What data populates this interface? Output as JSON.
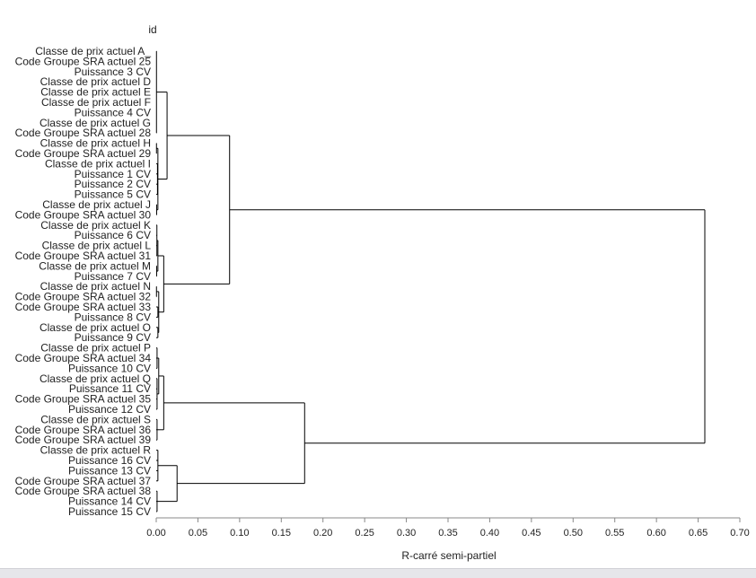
{
  "chart_data": {
    "type": "dendrogram",
    "orientation": "horizontal",
    "title": "id",
    "xlabel": "R-carré semi-partiel",
    "xlim": [
      0,
      0.7
    ],
    "xticks": [
      "0.00",
      "0.05",
      "0.10",
      "0.15",
      "0.20",
      "0.25",
      "0.30",
      "0.35",
      "0.40",
      "0.45",
      "0.50",
      "0.55",
      "0.60",
      "0.65",
      "0.70"
    ],
    "line_color": "#000000",
    "leaves": [
      "Classe de prix actuel A_",
      "Code Groupe SRA actuel 25",
      "Puissance 3 CV",
      "Classe de prix actuel D",
      "Classe de prix actuel E",
      "Classe de prix actuel F",
      "Puissance 4 CV",
      "Classe de prix actuel G",
      "Code Groupe SRA actuel 28",
      "Classe de prix actuel H",
      "Code Groupe SRA actuel 29",
      "Classe de prix actuel I",
      "Puissance 1 CV",
      "Puissance 2 CV",
      "Puissance 5 CV",
      "Classe de prix actuel J",
      "Code Groupe SRA actuel 30",
      "Classe de prix actuel K",
      "Puissance 6 CV",
      "Classe de prix actuel L",
      "Code Groupe SRA actuel 31",
      "Classe de prix actuel M",
      "Puissance 7 CV",
      "Classe de prix actuel N",
      "Code Groupe SRA actuel 32",
      "Code Groupe SRA actuel 33",
      "Puissance 8 CV",
      "Classe de prix actuel O",
      "Puissance 9 CV",
      "Classe de prix actuel P",
      "Code Groupe SRA actuel 34",
      "Puissance 10 CV",
      "Classe de prix actuel Q",
      "Puissance 11 CV",
      "Code Groupe SRA actuel 35",
      "Puissance 12 CV",
      "Classe de prix actuel S",
      "Code Groupe SRA actuel 36",
      "Code Groupe SRA actuel 39",
      "Classe de prix actuel R",
      "Puissance 16 CV",
      "Puissance 13 CV",
      "Code Groupe SRA actuel 37",
      "Code Groupe SRA actuel 38",
      "Puissance 14 CV",
      "Puissance 15 CV"
    ],
    "tree": {
      "h": 0.658,
      "c": [
        {
          "h": 0.088,
          "c": [
            {
              "h": 0.013,
              "c": [
                {
                  "h": 0.0003,
                  "c": [
                    0,
                    1,
                    2,
                    3,
                    4,
                    5,
                    6,
                    7,
                    8
                  ]
                },
                {
                  "h": 0.002,
                  "c": [
                    {
                      "h": 0.0003,
                      "c": [
                        9,
                        10
                      ]
                    },
                    {
                      "h": 0.0015,
                      "c": [
                        11,
                        12,
                        13,
                        14
                      ]
                    },
                    {
                      "h": 0.0005,
                      "c": [
                        15,
                        16
                      ]
                    }
                  ]
                }
              ]
            },
            {
              "h": 0.009,
              "c": [
                {
                  "h": 0.002,
                  "c": [
                    {
                      "h": 0.0008,
                      "c": [
                        17,
                        18,
                        19,
                        20
                      ]
                    },
                    {
                      "h": 0.0005,
                      "c": [
                        21,
                        22
                      ]
                    }
                  ]
                },
                {
                  "h": 0.003,
                  "c": [
                    {
                      "h": 0.0003,
                      "c": [
                        23,
                        24
                      ]
                    },
                    {
                      "h": 0.002,
                      "c": [
                        25,
                        26
                      ]
                    },
                    {
                      "h": 0.002,
                      "c": [
                        27,
                        28
                      ]
                    }
                  ]
                }
              ]
            }
          ]
        },
        {
          "h": 0.178,
          "c": [
            {
              "h": 0.009,
              "c": [
                {
                  "h": 0.003,
                  "c": [
                    {
                      "h": 0.001,
                      "c": [
                        29,
                        30,
                        31
                      ]
                    },
                    {
                      "h": 0.001,
                      "c": [
                        32,
                        33,
                        34,
                        35
                      ]
                    }
                  ]
                },
                {
                  "h": 0.001,
                  "c": [
                    36,
                    37,
                    38
                  ]
                }
              ]
            },
            {
              "h": 0.025,
              "c": [
                {
                  "h": 0.002,
                  "c": [
                    39,
                    40,
                    41,
                    42
                  ]
                },
                {
                  "h": 0.001,
                  "c": [
                    43,
                    44,
                    45
                  ]
                }
              ]
            }
          ]
        }
      ]
    }
  }
}
